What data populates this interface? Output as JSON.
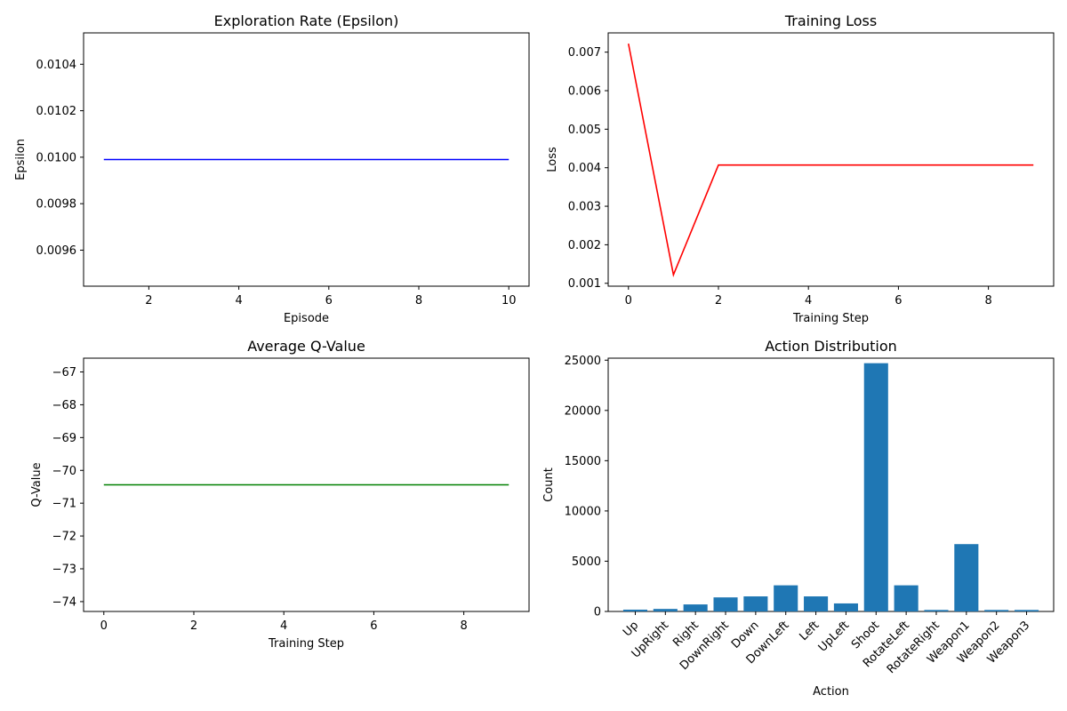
{
  "chart_data": [
    {
      "type": "line",
      "title": "Exploration Rate (Epsilon)",
      "xlabel": "Episode",
      "ylabel": "Epsilon",
      "xlim": [
        0.55,
        10.45
      ],
      "ylim": [
        0.009445,
        0.010535
      ],
      "xticks": [
        2,
        4,
        6,
        8,
        10
      ],
      "yticks": [
        0.0096,
        0.0098,
        0.01,
        0.0102,
        0.0104
      ],
      "ytick_labels": [
        "0.0096",
        "0.0098",
        "0.0100",
        "0.0102",
        "0.0104"
      ],
      "color": "#0000ff",
      "series": [
        {
          "x": [
            1,
            2,
            3,
            4,
            5,
            6,
            7,
            8,
            9,
            10
          ],
          "y": [
            0.00999,
            0.00999,
            0.00999,
            0.00999,
            0.00999,
            0.00999,
            0.00999,
            0.00999,
            0.00999,
            0.00999
          ]
        }
      ]
    },
    {
      "type": "line",
      "title": "Training Loss",
      "xlabel": "Training Step",
      "ylabel": "Loss",
      "xlim": [
        -0.45,
        9.45
      ],
      "ylim": [
        0.000925,
        0.0075
      ],
      "xticks": [
        0,
        2,
        4,
        6,
        8
      ],
      "yticks": [
        0.001,
        0.002,
        0.003,
        0.004,
        0.005,
        0.006,
        0.007
      ],
      "ytick_labels": [
        "0.001",
        "0.002",
        "0.003",
        "0.004",
        "0.005",
        "0.006",
        "0.007"
      ],
      "color": "#ff0000",
      "series": [
        {
          "x": [
            0,
            1,
            2,
            3,
            4,
            5,
            6,
            7,
            8,
            9
          ],
          "y": [
            0.00722,
            0.00122,
            0.00407,
            0.00407,
            0.00407,
            0.00407,
            0.00407,
            0.00407,
            0.00407,
            0.00407
          ]
        }
      ]
    },
    {
      "type": "line",
      "title": "Average Q-Value",
      "xlabel": "Training Step",
      "ylabel": "Q-Value",
      "xlim": [
        -0.45,
        9.45
      ],
      "ylim": [
        -74.3,
        -66.58
      ],
      "xticks": [
        0,
        2,
        4,
        6,
        8
      ],
      "yticks": [
        -74,
        -73,
        -72,
        -71,
        -70,
        -69,
        -68,
        -67
      ],
      "ytick_labels": [
        "−74",
        "−73",
        "−72",
        "−71",
        "−70",
        "−69",
        "−68",
        "−67"
      ],
      "color": "#008000",
      "series": [
        {
          "x": [
            0,
            1,
            2,
            3,
            4,
            5,
            6,
            7,
            8,
            9
          ],
          "y": [
            -70.44,
            -70.44,
            -70.44,
            -70.44,
            -70.44,
            -70.44,
            -70.44,
            -70.44,
            -70.44,
            -70.44
          ]
        }
      ]
    },
    {
      "type": "bar",
      "title": "Action Distribution",
      "xlabel": "Action",
      "ylabel": "Count",
      "ylim": [
        0,
        25200
      ],
      "yticks": [
        0,
        5000,
        10000,
        15000,
        20000,
        25000
      ],
      "ytick_labels": [
        "0",
        "5000",
        "10000",
        "15000",
        "20000",
        "25000"
      ],
      "color": "#1f77b4",
      "categories": [
        "Up",
        "UpRight",
        "Right",
        "DownRight",
        "Down",
        "DownLeft",
        "Left",
        "UpLeft",
        "Shoot",
        "RotateLeft",
        "RotateRight",
        "Weapon1",
        "Weapon2",
        "Weapon3"
      ],
      "values": [
        180,
        250,
        700,
        1400,
        1500,
        2600,
        1500,
        800,
        24700,
        2600,
        150,
        6700,
        150,
        150
      ]
    }
  ]
}
